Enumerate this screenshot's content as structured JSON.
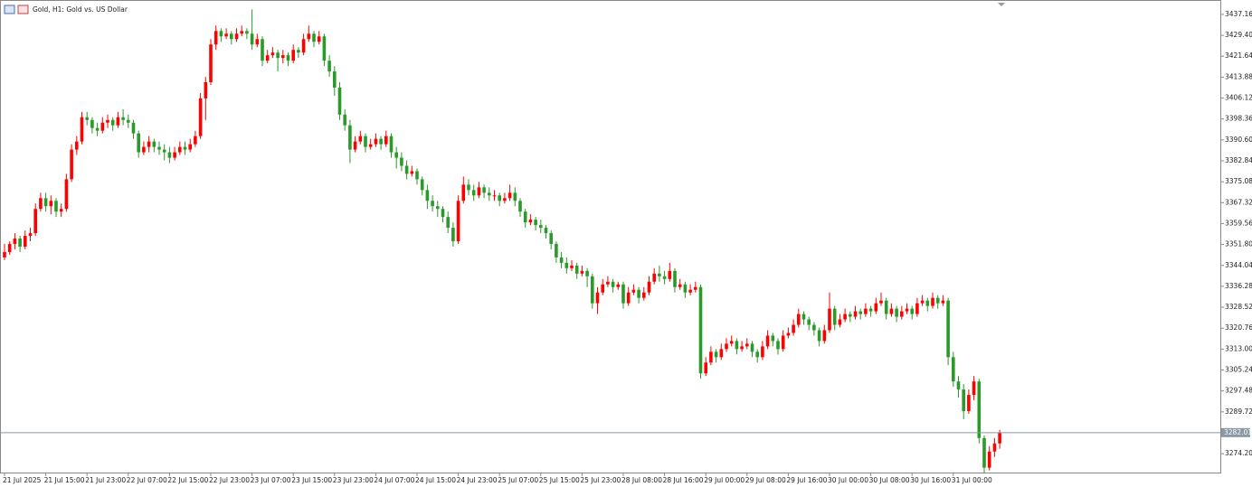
{
  "chart_data": {
    "type": "candlestick",
    "title": "Gold, H1: Gold vs. US Dollar",
    "up_color": "#ff0000",
    "down_color": "#2a9a2a",
    "grid": false,
    "ylim": [
      3267.2,
      3442.5
    ],
    "yticks": [
      3437.16,
      {
        "value": 3429.4,
        "label": "3429.40"
      },
      3421.64,
      3413.88,
      3406.12,
      3398.36,
      {
        "value": 3390.6,
        "label": "3390.60"
      },
      3382.84,
      3375.08,
      3367.32,
      3359.56,
      {
        "value": 3351.8,
        "label": "3351.80"
      },
      3344.04,
      3336.28,
      3328.52,
      3320.76,
      {
        "value": 3313,
        "label": "3313.00"
      },
      3305.24,
      3297.48,
      3289.72,
      {
        "value": 3274.2,
        "label": "3274.20"
      }
    ],
    "current_price": 3282.01,
    "categories": [
      "21 Jul 2025",
      null,
      null,
      null,
      null,
      null,
      null,
      null,
      "21 Jul 15:00",
      null,
      null,
      null,
      null,
      null,
      null,
      null,
      "21 Jul 23:00",
      null,
      null,
      null,
      null,
      null,
      null,
      null,
      "22 Jul 07:00",
      null,
      null,
      null,
      null,
      null,
      null,
      null,
      "22 Jul 15:00",
      null,
      null,
      null,
      null,
      null,
      null,
      null,
      "22 Jul 23:00",
      null,
      null,
      null,
      null,
      null,
      null,
      null,
      "23 Jul 07:00",
      null,
      null,
      null,
      null,
      null,
      null,
      null,
      "23 Jul 15:00",
      null,
      null,
      null,
      null,
      null,
      null,
      null,
      "23 Jul 23:00",
      null,
      null,
      null,
      null,
      null,
      null,
      null,
      "24 Jul 07:00",
      null,
      null,
      null,
      null,
      null,
      null,
      null,
      "24 Jul 15:00",
      null,
      null,
      null,
      null,
      null,
      null,
      null,
      "24 Jul 23:00",
      null,
      null,
      null,
      null,
      null,
      null,
      null,
      "25 Jul 07:00",
      null,
      null,
      null,
      null,
      null,
      null,
      null,
      "25 Jul 15:00",
      null,
      null,
      null,
      null,
      null,
      null,
      null,
      "25 Jul 23:00",
      null,
      null,
      null,
      null,
      null,
      null,
      null,
      "28 Jul 08:00",
      null,
      null,
      null,
      null,
      null,
      null,
      null,
      "28 Jul 16:00",
      null,
      null,
      null,
      null,
      null,
      null,
      null,
      "29 Jul 00:00",
      null,
      null,
      null,
      null,
      null,
      null,
      null,
      "29 Jul 08:00",
      null,
      null,
      null,
      null,
      null,
      null,
      null,
      "29 Jul 16:00",
      null,
      null,
      null,
      null,
      null,
      null,
      null,
      "30 Jul 00:00",
      null,
      null,
      null,
      null,
      null,
      null,
      null,
      "30 Jul 08:00",
      null,
      null,
      null,
      null,
      null,
      null,
      null,
      "30 Jul 16:00",
      null,
      null,
      null,
      null,
      null,
      null,
      null,
      "31 Jul 00:00",
      null,
      null,
      null,
      null,
      null,
      null,
      null,
      null,
      null
    ],
    "candles": [
      [
        3347,
        3352,
        3346,
        3349
      ],
      [
        3349,
        3353,
        3348,
        3352
      ],
      [
        3352,
        3356,
        3350,
        3354
      ],
      [
        3354,
        3355,
        3349,
        3351
      ],
      [
        3351,
        3357,
        3350,
        3355
      ],
      [
        3355,
        3358,
        3353,
        3356
      ],
      [
        3356,
        3367,
        3355,
        3365
      ],
      [
        3365,
        3371,
        3364,
        3369
      ],
      [
        3369,
        3371,
        3364,
        3366
      ],
      [
        3366,
        3370,
        3363,
        3368
      ],
      [
        3368,
        3369,
        3362,
        3364
      ],
      [
        3364,
        3367,
        3362,
        3365
      ],
      [
        3365,
        3378,
        3364,
        3376
      ],
      [
        3376,
        3389,
        3375,
        3387
      ],
      [
        3387,
        3392,
        3385,
        3390
      ],
      [
        3390,
        3401,
        3389,
        3399
      ],
      [
        3399,
        3401,
        3396,
        3398
      ],
      [
        3398,
        3399,
        3393,
        3395
      ],
      [
        3395,
        3397,
        3392,
        3394
      ],
      [
        3394,
        3399,
        3393,
        3397
      ],
      [
        3397,
        3400,
        3395,
        3398
      ],
      [
        3398,
        3399,
        3394,
        3396
      ],
      [
        3396,
        3401,
        3395,
        3399
      ],
      [
        3399,
        3402,
        3396,
        3398
      ],
      [
        3398,
        3400,
        3395,
        3397
      ],
      [
        3397,
        3398,
        3391,
        3393
      ],
      [
        3393,
        3394,
        3384,
        3386
      ],
      [
        3386,
        3390,
        3385,
        3388
      ],
      [
        3388,
        3392,
        3386,
        3390
      ],
      [
        3390,
        3391,
        3386,
        3388
      ],
      [
        3388,
        3390,
        3385,
        3387
      ],
      [
        3387,
        3389,
        3383,
        3386
      ],
      [
        3386,
        3388,
        3382,
        3384
      ],
      [
        3384,
        3388,
        3383,
        3386
      ],
      [
        3386,
        3390,
        3385,
        3388
      ],
      [
        3388,
        3390,
        3385,
        3387
      ],
      [
        3387,
        3391,
        3386,
        3389
      ],
      [
        3389,
        3394,
        3388,
        3392
      ],
      [
        3392,
        3408,
        3391,
        3406
      ],
      [
        3406,
        3414,
        3398,
        3412
      ],
      [
        3412,
        3428,
        3411,
        3426
      ],
      [
        3426,
        3433,
        3424,
        3431
      ],
      [
        3431,
        3432,
        3427,
        3429
      ],
      [
        3429,
        3432,
        3428,
        3430
      ],
      [
        3430,
        3431,
        3426,
        3428
      ],
      [
        3428,
        3432,
        3427,
        3430
      ],
      [
        3430,
        3433,
        3429,
        3431
      ],
      [
        3431,
        3432,
        3428,
        3430
      ],
      [
        3430,
        3439,
        3424,
        3426
      ],
      [
        3426,
        3430,
        3425,
        3428
      ],
      [
        3428,
        3429,
        3418,
        3420
      ],
      [
        3420,
        3424,
        3419,
        3422
      ],
      [
        3422,
        3425,
        3421,
        3423
      ],
      [
        3423,
        3424,
        3416,
        3421
      ],
      [
        3421,
        3424,
        3419,
        3422
      ],
      [
        3422,
        3423,
        3418,
        3420
      ],
      [
        3420,
        3426,
        3419,
        3424
      ],
      [
        3424,
        3425,
        3421,
        3423
      ],
      [
        3423,
        3430,
        3422,
        3428
      ],
      [
        3428,
        3433,
        3427,
        3430
      ],
      [
        3430,
        3431,
        3425,
        3427
      ],
      [
        3427,
        3431,
        3426,
        3429
      ],
      [
        3429,
        3430,
        3418,
        3420
      ],
      [
        3420,
        3422,
        3414,
        3416
      ],
      [
        3416,
        3418,
        3407,
        3410
      ],
      [
        3410,
        3412,
        3398,
        3400
      ],
      [
        3400,
        3402,
        3394,
        3396
      ],
      [
        3396,
        3398,
        3382,
        3387
      ],
      [
        3387,
        3392,
        3386,
        3390
      ],
      [
        3390,
        3394,
        3389,
        3392
      ],
      [
        3392,
        3393,
        3386,
        3388
      ],
      [
        3388,
        3391,
        3387,
        3389
      ],
      [
        3389,
        3393,
        3388,
        3391
      ],
      [
        3391,
        3392,
        3387,
        3389
      ],
      [
        3389,
        3394,
        3388,
        3392
      ],
      [
        3392,
        3393,
        3384,
        3386
      ],
      [
        3386,
        3388,
        3380,
        3384
      ],
      [
        3384,
        3386,
        3379,
        3381
      ],
      [
        3381,
        3383,
        3376,
        3378
      ],
      [
        3378,
        3381,
        3377,
        3379
      ],
      [
        3379,
        3380,
        3374,
        3376
      ],
      [
        3376,
        3377,
        3370,
        3372
      ],
      [
        3372,
        3374,
        3365,
        3368
      ],
      [
        3368,
        3370,
        3364,
        3366
      ],
      [
        3366,
        3368,
        3362,
        3365
      ],
      [
        3365,
        3366,
        3360,
        3362
      ],
      [
        3362,
        3364,
        3356,
        3358
      ],
      [
        3358,
        3360,
        3351,
        3353
      ],
      [
        3353,
        3370,
        3352,
        3368
      ],
      [
        3368,
        3377,
        3367,
        3374
      ],
      [
        3374,
        3376,
        3370,
        3372
      ],
      [
        3372,
        3374,
        3368,
        3370
      ],
      [
        3370,
        3375,
        3369,
        3373
      ],
      [
        3373,
        3374,
        3369,
        3371
      ],
      [
        3371,
        3373,
        3368,
        3370
      ],
      [
        3370,
        3372,
        3368,
        3370
      ],
      [
        3370,
        3371,
        3366,
        3368
      ],
      [
        3368,
        3371,
        3367,
        3369
      ],
      [
        3369,
        3374,
        3368,
        3371
      ],
      [
        3371,
        3373,
        3366,
        3368
      ],
      [
        3368,
        3369,
        3362,
        3364
      ],
      [
        3364,
        3365,
        3358,
        3360
      ],
      [
        3360,
        3363,
        3359,
        3361
      ],
      [
        3361,
        3362,
        3357,
        3359
      ],
      [
        3359,
        3361,
        3356,
        3358
      ],
      [
        3358,
        3359,
        3354,
        3356
      ],
      [
        3356,
        3357,
        3350,
        3352
      ],
      [
        3352,
        3353,
        3345,
        3347
      ],
      [
        3347,
        3349,
        3343,
        3345
      ],
      [
        3345,
        3347,
        3341,
        3343
      ],
      [
        3343,
        3346,
        3342,
        3344
      ],
      [
        3344,
        3345,
        3339,
        3341
      ],
      [
        3341,
        3344,
        3340,
        3342
      ],
      [
        3342,
        3343,
        3336,
        3340
      ],
      [
        3340,
        3341,
        3328,
        3330
      ],
      [
        3330,
        3336,
        3326,
        3334
      ],
      [
        3334,
        3339,
        3333,
        3337
      ],
      [
        3337,
        3340,
        3336,
        3338
      ],
      [
        3338,
        3339,
        3334,
        3336
      ],
      [
        3336,
        3338,
        3335,
        3337
      ],
      [
        3337,
        3338,
        3328,
        3330
      ],
      [
        3330,
        3336,
        3329,
        3334
      ],
      [
        3334,
        3337,
        3333,
        3335
      ],
      [
        3335,
        3336,
        3330,
        3332
      ],
      [
        3332,
        3336,
        3331,
        3334
      ],
      [
        3334,
        3340,
        3333,
        3338
      ],
      [
        3338,
        3343,
        3337,
        3341
      ],
      [
        3341,
        3344,
        3338,
        3340
      ],
      [
        3340,
        3342,
        3337,
        3339
      ],
      [
        3339,
        3345,
        3338,
        3342
      ],
      [
        3342,
        3343,
        3334,
        3336
      ],
      [
        3336,
        3339,
        3335,
        3337
      ],
      [
        3337,
        3338,
        3332,
        3334
      ],
      [
        3334,
        3337,
        3333,
        3335
      ],
      [
        3335,
        3338,
        3334,
        3336
      ],
      [
        3336,
        3337,
        3302,
        3304
      ],
      [
        3304,
        3310,
        3303,
        3308
      ],
      [
        3308,
        3314,
        3307,
        3312
      ],
      [
        3312,
        3313,
        3308,
        3310
      ],
      [
        3310,
        3315,
        3309,
        3313
      ],
      [
        3313,
        3317,
        3312,
        3315
      ],
      [
        3315,
        3318,
        3314,
        3316
      ],
      [
        3316,
        3317,
        3311,
        3313
      ],
      [
        3313,
        3316,
        3312,
        3314
      ],
      [
        3314,
        3317,
        3313,
        3315
      ],
      [
        3315,
        3316,
        3310,
        3312
      ],
      [
        3312,
        3313,
        3308,
        3310
      ],
      [
        3310,
        3316,
        3309,
        3314
      ],
      [
        3314,
        3320,
        3313,
        3318
      ],
      [
        3318,
        3319,
        3314,
        3316
      ],
      [
        3316,
        3317,
        3311,
        3313
      ],
      [
        3313,
        3320,
        3312,
        3318
      ],
      [
        3318,
        3321,
        3317,
        3319
      ],
      [
        3319,
        3324,
        3318,
        3322
      ],
      [
        3322,
        3328,
        3321,
        3326
      ],
      [
        3326,
        3327,
        3322,
        3324
      ],
      [
        3324,
        3325,
        3320,
        3322
      ],
      [
        3322,
        3323,
        3318,
        3320
      ],
      [
        3320,
        3321,
        3314,
        3316
      ],
      [
        3316,
        3322,
        3315,
        3320
      ],
      [
        3320,
        3334,
        3319,
        3328
      ],
      [
        3328,
        3329,
        3320,
        3322
      ],
      [
        3322,
        3326,
        3321,
        3324
      ],
      [
        3324,
        3328,
        3323,
        3326
      ],
      [
        3326,
        3327,
        3323,
        3325
      ],
      [
        3325,
        3329,
        3324,
        3327
      ],
      [
        3327,
        3328,
        3324,
        3326
      ],
      [
        3326,
        3330,
        3325,
        3328
      ],
      [
        3328,
        3329,
        3325,
        3327
      ],
      [
        3327,
        3332,
        3326,
        3330
      ],
      [
        3330,
        3334,
        3329,
        3331
      ],
      [
        3331,
        3332,
        3324,
        3326
      ],
      [
        3326,
        3330,
        3325,
        3328
      ],
      [
        3328,
        3329,
        3323,
        3325
      ],
      [
        3325,
        3329,
        3324,
        3327
      ],
      [
        3327,
        3330,
        3326,
        3328
      ],
      [
        3328,
        3329,
        3324,
        3326
      ],
      [
        3326,
        3332,
        3325,
        3330
      ],
      [
        3330,
        3333,
        3329,
        3331
      ],
      [
        3331,
        3332,
        3327,
        3329
      ],
      [
        3329,
        3334,
        3328,
        3332
      ],
      [
        3332,
        3333,
        3328,
        3330
      ],
      [
        3330,
        3333,
        3329,
        3331
      ],
      [
        3331,
        3332,
        3307,
        3310
      ],
      [
        3310,
        3312,
        3299,
        3301
      ],
      [
        3301,
        3303,
        3295,
        3298
      ],
      [
        3298,
        3300,
        3287,
        3290
      ],
      [
        3290,
        3298,
        3289,
        3296
      ],
      [
        3296,
        3303,
        3294,
        3301
      ],
      [
        3301,
        3302,
        3278,
        3280
      ],
      [
        3280,
        3281,
        3267,
        3269
      ],
      [
        3269,
        3277,
        3268,
        3275
      ],
      [
        3275,
        3280,
        3273,
        3278
      ],
      [
        3278,
        3283,
        3276,
        3282.01
      ]
    ]
  }
}
